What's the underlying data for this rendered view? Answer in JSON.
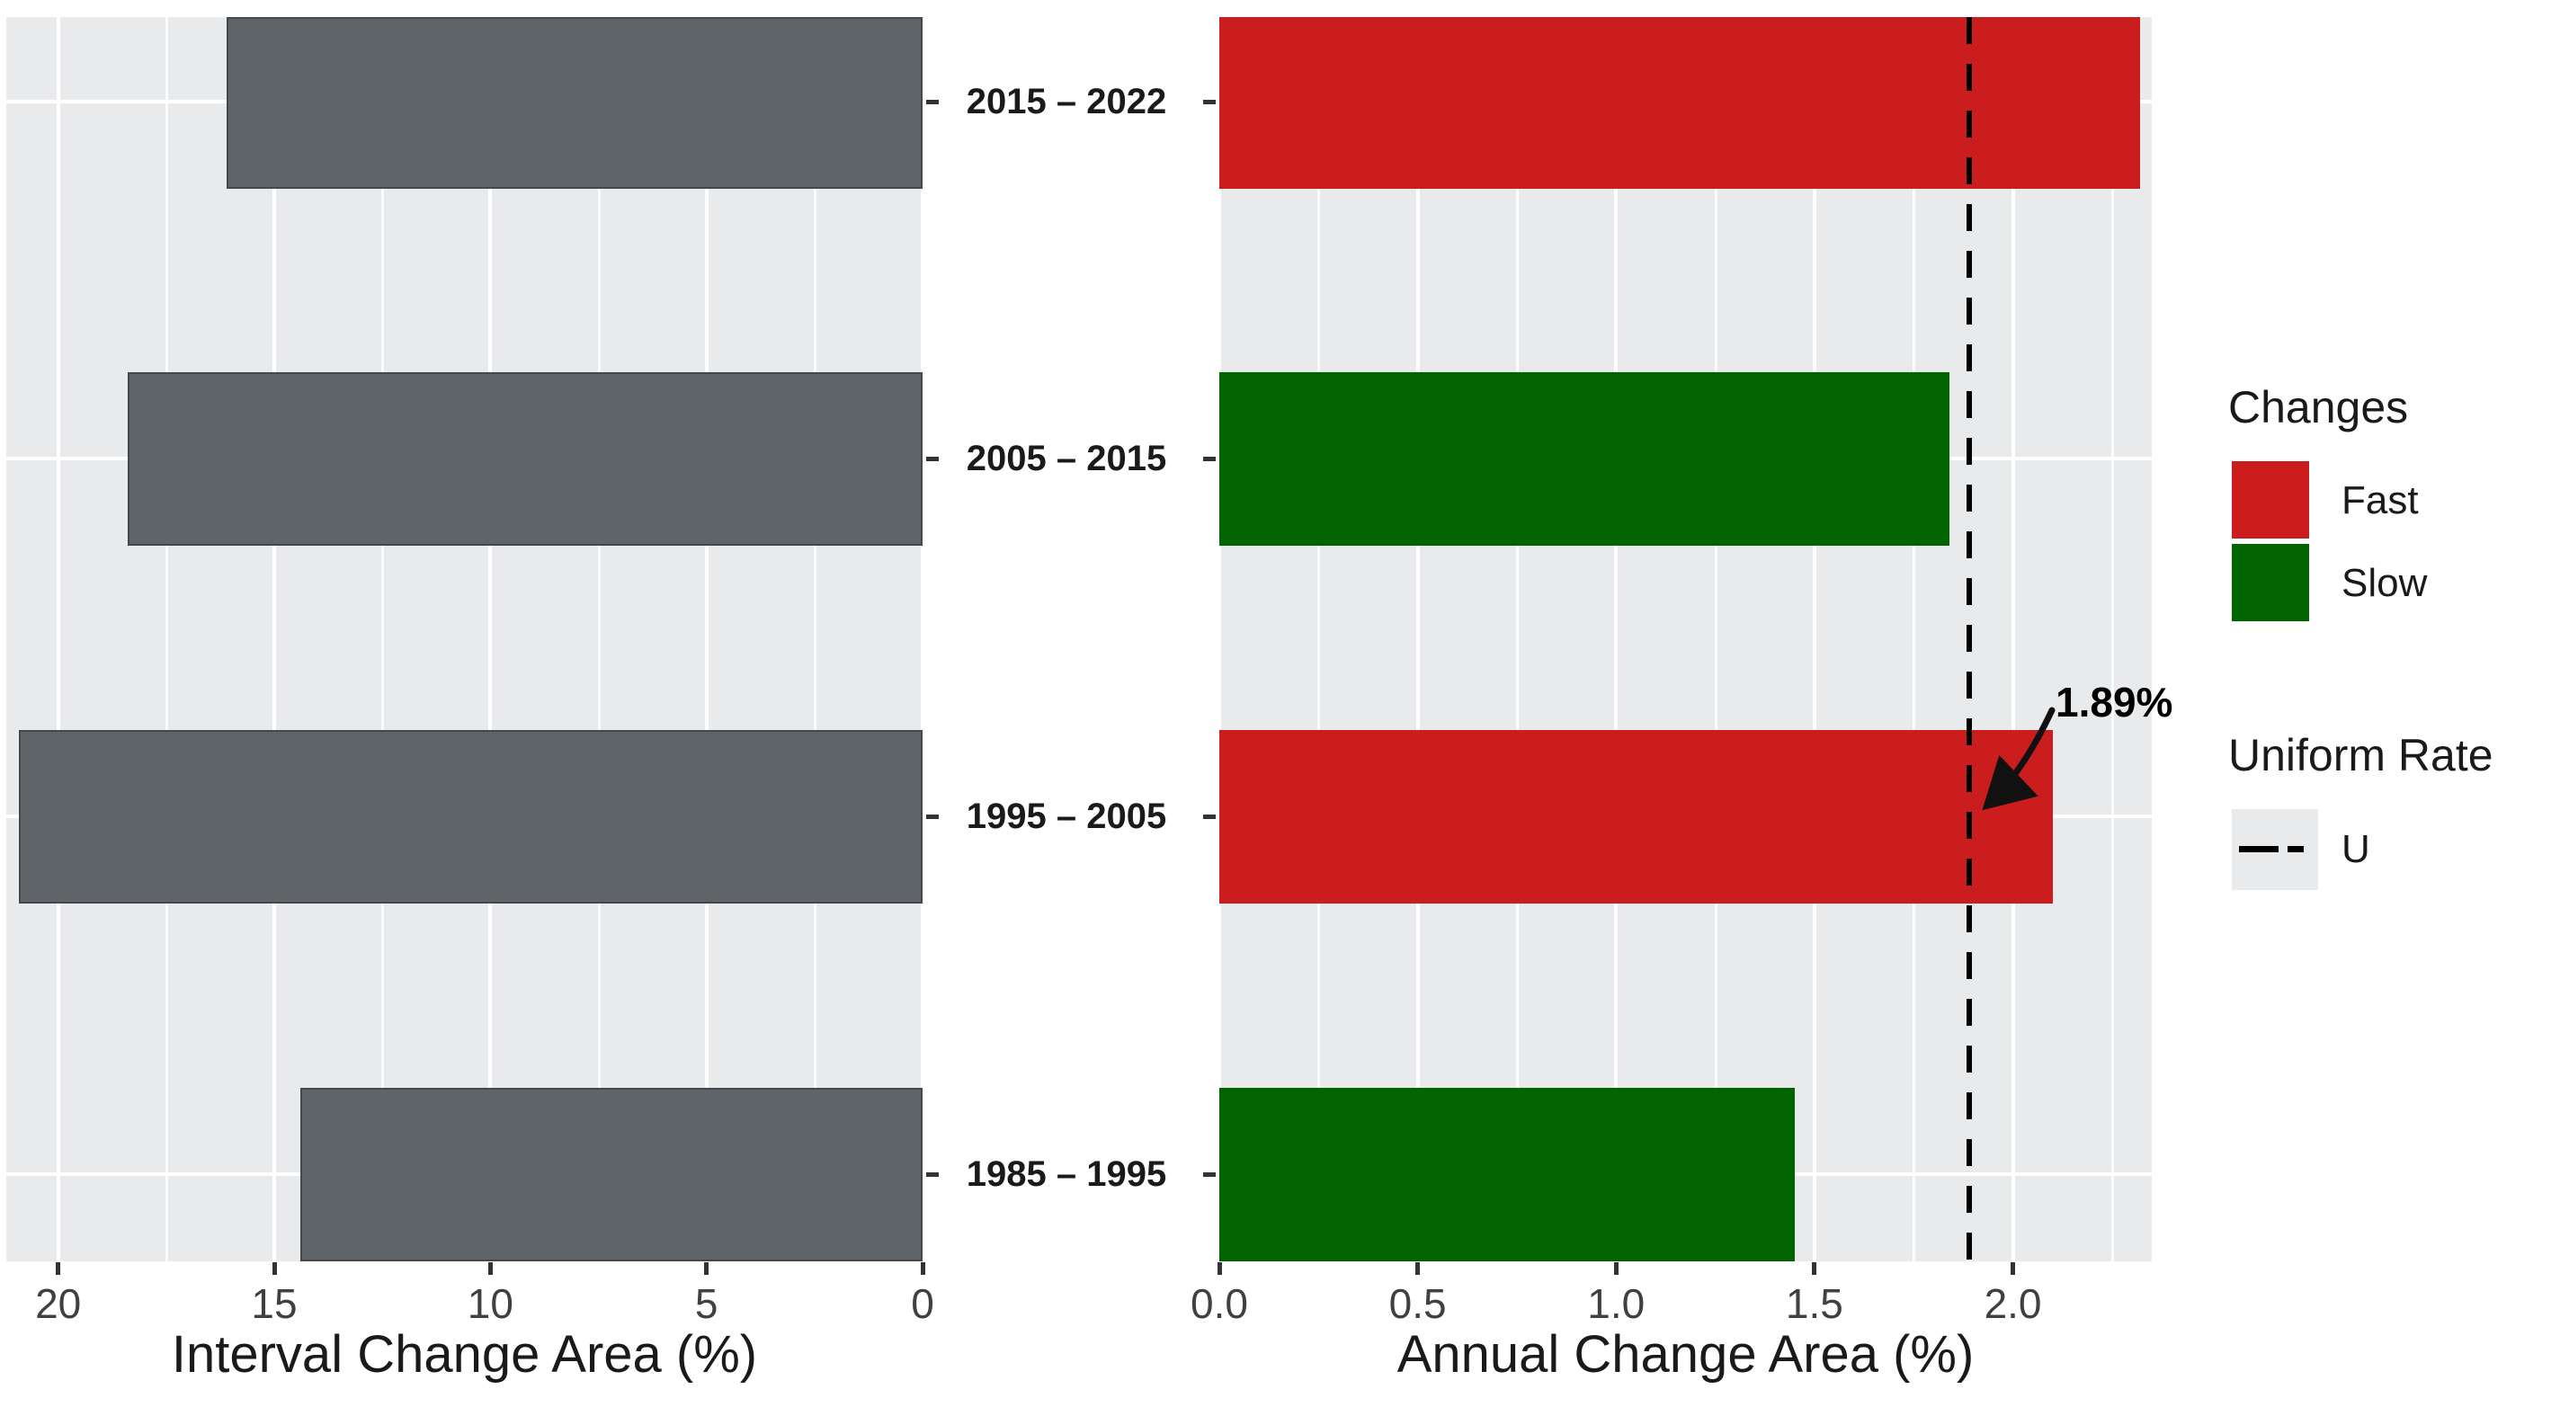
{
  "chart_data": [
    {
      "type": "bar",
      "orientation": "horizontal",
      "panel": "left",
      "xlabel": "Interval Change Area (%)",
      "categories": [
        "2015 – 2022",
        "2005 – 2015",
        "1995 – 2005",
        "1985 – 1995"
      ],
      "values": [
        16.1,
        18.4,
        20.9,
        14.4
      ],
      "bar_color_key": "gray_bar",
      "xlim": [
        21.2,
        0
      ],
      "x_ticks": {
        "values": [
          20,
          15,
          10,
          5,
          0
        ],
        "labels": [
          "20",
          "15",
          "10",
          "5",
          "0"
        ]
      },
      "x_minor_ticks": [
        17.5,
        12.5,
        7.5,
        2.5
      ],
      "grid": true
    },
    {
      "type": "bar",
      "orientation": "horizontal",
      "panel": "right",
      "xlabel": "Annual Change Area (%)",
      "categories": [
        "2015 – 2022",
        "2005 – 2015",
        "1995 – 2005",
        "1985 – 1995"
      ],
      "series": [
        {
          "name": "Annual Change Area",
          "values": [
            2.32,
            1.84,
            2.1,
            1.45
          ],
          "classes": [
            "Fast",
            "Slow",
            "Fast",
            "Slow"
          ]
        }
      ],
      "xlim": [
        0,
        2.35
      ],
      "x_ticks": {
        "values": [
          0,
          0.5,
          1,
          1.5,
          2
        ],
        "labels": [
          "0.0",
          "0.5",
          "1.0",
          "1.5",
          "2.0"
        ]
      },
      "x_minor_ticks": [
        0.25,
        0.75,
        1.25,
        1.75,
        2.25
      ],
      "vline": {
        "value": 1.89,
        "style": "dashed",
        "label": "1.89%"
      },
      "grid": true
    }
  ],
  "legend": {
    "changes": {
      "title": "Changes",
      "items": [
        {
          "label": "Fast",
          "color_key": "red"
        },
        {
          "label": "Slow",
          "color_key": "green"
        }
      ]
    },
    "uniform_rate": {
      "title": "Uniform Rate",
      "items": [
        {
          "label": "U",
          "style": "dashed-line"
        }
      ]
    }
  },
  "annotation": {
    "label": "1.89%"
  },
  "colors": {
    "red": "#cb1d1d",
    "green": "#016401",
    "gray_bar": "#5f6468",
    "gray_bar_edge": "#44484c",
    "panel_bg": "#e8eaec",
    "grid_major": "#ffffff",
    "grid_minor": "#fafbfc",
    "tick_text": "#404040",
    "text": "#1a1a1a",
    "dashed_line": "#000000",
    "arrow": "#111111"
  }
}
